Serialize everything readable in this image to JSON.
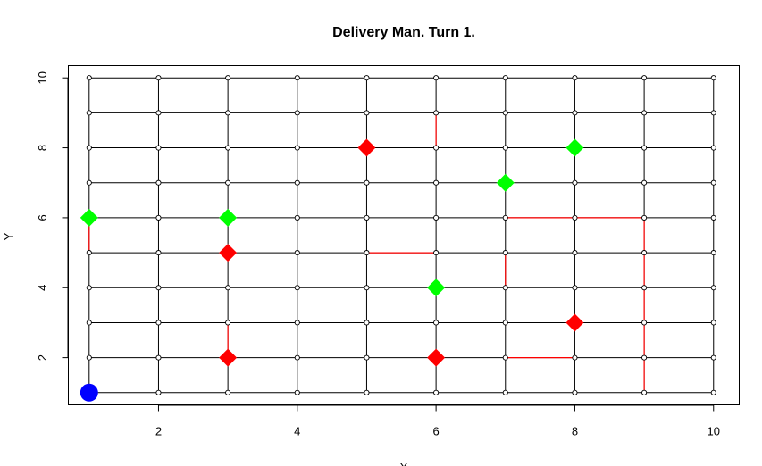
{
  "chart_data": {
    "type": "scatter",
    "title": "Delivery Man. Turn 1.",
    "xlabel": "X",
    "ylabel": "Y",
    "xlim": [
      0.7,
      10.37
    ],
    "ylim": [
      0.65,
      10.35
    ],
    "x_ticks": [
      2,
      4,
      6,
      8,
      10
    ],
    "y_ticks": [
      2,
      4,
      6,
      8,
      10
    ],
    "grid_nodes": {
      "x": [
        1,
        2,
        3,
        4,
        5,
        6,
        7,
        8,
        9,
        10
      ],
      "y": [
        1,
        2,
        3,
        4,
        5,
        6,
        7,
        8,
        9,
        10
      ]
    },
    "grid_color": "#000000",
    "traffic_color": "#ff0000",
    "red_edges": [
      [
        [
          1,
          5
        ],
        [
          1,
          6
        ]
      ],
      [
        [
          3,
          2
        ],
        [
          3,
          3
        ]
      ],
      [
        [
          5,
          5
        ],
        [
          6,
          5
        ]
      ],
      [
        [
          6,
          8
        ],
        [
          6,
          9
        ]
      ],
      [
        [
          7,
          4
        ],
        [
          7,
          5
        ]
      ],
      [
        [
          7,
          6
        ],
        [
          8,
          6
        ]
      ],
      [
        [
          8,
          6
        ],
        [
          9,
          6
        ]
      ],
      [
        [
          7,
          2
        ],
        [
          8,
          2
        ]
      ],
      [
        [
          9,
          1
        ],
        [
          9,
          2
        ]
      ],
      [
        [
          9,
          2
        ],
        [
          9,
          3
        ]
      ],
      [
        [
          9,
          3
        ],
        [
          9,
          4
        ]
      ],
      [
        [
          9,
          4
        ],
        [
          9,
          5
        ]
      ],
      [
        [
          9,
          5
        ],
        [
          9,
          6
        ]
      ]
    ],
    "series": [
      {
        "marker": "diamond",
        "color": "#00ff00",
        "points": [
          [
            1,
            6
          ],
          [
            3,
            6
          ],
          [
            7,
            7
          ],
          [
            8,
            8
          ],
          [
            6,
            4
          ]
        ]
      },
      {
        "marker": "diamond",
        "color": "#ff0000",
        "points": [
          [
            5,
            8
          ],
          [
            3,
            5
          ],
          [
            3,
            2
          ],
          [
            6,
            2
          ],
          [
            8,
            3
          ]
        ]
      },
      {
        "marker": "circle",
        "color": "#0000ff",
        "points": [
          [
            1,
            1
          ]
        ]
      }
    ]
  }
}
